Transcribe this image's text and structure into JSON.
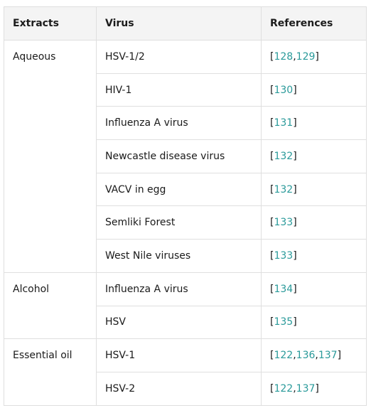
{
  "table": {
    "headers": {
      "extracts": "Extracts",
      "virus": "Virus",
      "references": "References"
    },
    "groups": [
      {
        "extract": "Aqueous",
        "rows": [
          {
            "virus": "HSV-1/2",
            "refs": [
              "128",
              "129"
            ]
          },
          {
            "virus": "HIV-1",
            "refs": [
              "130"
            ]
          },
          {
            "virus": "Influenza A virus",
            "refs": [
              "131"
            ]
          },
          {
            "virus": "Newcastle disease virus",
            "refs": [
              "132"
            ]
          },
          {
            "virus": "VACV in egg",
            "refs": [
              "132"
            ]
          },
          {
            "virus": "Semliki Forest",
            "refs": [
              "133"
            ]
          },
          {
            "virus": "West Nile viruses",
            "refs": [
              "133"
            ]
          }
        ]
      },
      {
        "extract": "Alcohol",
        "rows": [
          {
            "virus": "Influenza A virus",
            "refs": [
              "134"
            ]
          },
          {
            "virus": "HSV",
            "refs": [
              "135"
            ]
          }
        ]
      },
      {
        "extract": "Essential oil",
        "rows": [
          {
            "virus": "HSV-1",
            "refs": [
              "122",
              "136",
              "137"
            ]
          },
          {
            "virus": "HSV-2",
            "refs": [
              "122",
              "137"
            ]
          }
        ]
      }
    ],
    "colors": {
      "link": "#2a9a9a",
      "header_bg": "#f4f4f4",
      "border": "#dfdfdf"
    }
  }
}
